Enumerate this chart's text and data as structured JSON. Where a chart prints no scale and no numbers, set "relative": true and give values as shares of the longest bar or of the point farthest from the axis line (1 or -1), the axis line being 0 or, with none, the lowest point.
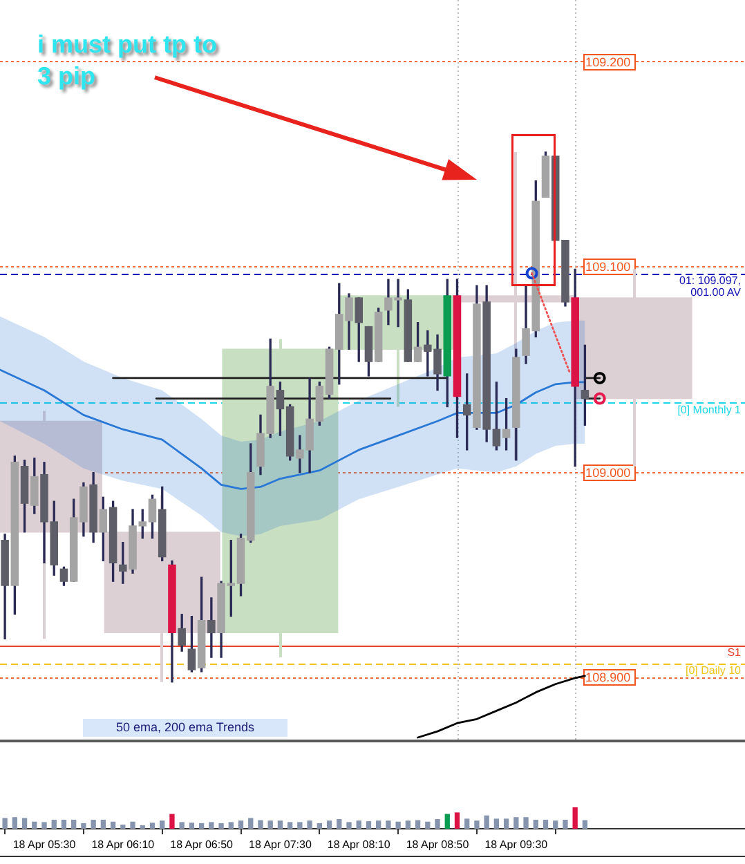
{
  "chart_data": [
    {
      "type": "candlestick",
      "xlim": [
        "--04-18T05:07:30",
        "--04-18T11:26:24"
      ],
      "ylim": [
        108.87,
        109.23
      ],
      "yticks": [
        {
          "value": 108.9,
          "label": "108.900"
        },
        {
          "value": 109.0,
          "label": "109.000"
        },
        {
          "value": 109.1,
          "label": "109.100"
        },
        {
          "value": 109.2,
          "label": "109.200"
        }
      ],
      "grid": "y",
      "tick_labels": "y",
      "series": [
        {
          "type": "bar",
          "x": [
            "--04-18T05:30",
            "--04-18T06:30",
            "--04-18T07:30",
            "--04-18T08:30",
            "--04-18T09:30",
            "--04-18T10:30"
          ],
          "base": [
            109.025,
            108.971,
            108.922,
            109.06,
            109.086,
            109.085
          ],
          "values": [
            -0.054,
            -0.049,
            0.138,
            0.026,
            -0.003,
            -0.049
          ],
          "errors": [
            [
              108.919,
              109.03
            ],
            [
              108.898,
              108.989
            ],
            [
              108.91,
              109.065
            ],
            [
              109.032,
              109.094
            ],
            [
              109.006,
              109.156
            ],
            [
              109.003,
              109.099
            ]
          ],
          "colors": [
            "#ddd0d4",
            "#ddd0d4",
            "#c9dfc1",
            "#c9dfc1",
            "#ddd0d4",
            "#ddd0d4"
          ]
        },
        {
          "type": "line",
          "color": "#2a78d6",
          "x": [
            "--04-18T05:07:30",
            "--04-18T05:30",
            "--04-18T05:50",
            "--04-18T06:10",
            "--04-18T06:30",
            "--04-18T06:50",
            "--04-18T07:00",
            "--04-18T07:10",
            "--04-18T07:20",
            "--04-18T07:30",
            "--04-18T07:50",
            "--04-18T08:10",
            "--04-18T08:30",
            "--04-18T08:50",
            "--04-18T09:00",
            "--04-18T09:10",
            "--04-18T09:20",
            "--04-18T09:30",
            "--04-18T09:40",
            "--04-18T09:50",
            "--04-18T10:00",
            "--04-18T10:05"
          ],
          "values": [
            109.05,
            109.04,
            109.028,
            109.021,
            109.016,
            109.002,
            108.994,
            108.992,
            108.993,
            108.997,
            109.001,
            109.011,
            109.018,
            109.025,
            109.029,
            109.029,
            109.029,
            109.033,
            109.039,
            109.043,
            109.044,
            109.044
          ],
          "upper": [
            109.076,
            109.066,
            109.054,
            109.046,
            109.04,
            109.026,
            109.018,
            109.015,
            109.016,
            109.02,
            109.025,
            109.035,
            109.043,
            109.051,
            109.056,
            109.057,
            109.058,
            109.063,
            109.069,
            109.073,
            109.074,
            109.074
          ],
          "lower": [
            109.025,
            109.014,
            109.002,
            108.996,
            108.992,
            108.979,
            108.971,
            108.969,
            108.97,
            108.974,
            108.977,
            108.987,
            108.993,
            108.999,
            109.002,
            109.001,
            109.0,
            109.003,
            109.009,
            109.013,
            109.014,
            109.014
          ]
        },
        {
          "type": "line",
          "color": "#000000",
          "x": [
            "--04-18T08:40",
            "--04-18T08:50",
            "--04-18T09:00",
            "--04-18T09:10",
            "--04-18T09:20",
            "--04-18T09:30",
            "--04-18T09:40",
            "--04-18T09:50",
            "--04-18T10:00",
            "--04-18T10:05"
          ],
          "values": [
            108.871,
            108.874,
            108.878,
            108.88,
            108.884,
            108.888,
            108.893,
            108.897,
            108.9,
            108.901
          ]
        },
        {
          "type": "line",
          "color": "#1e1e1e",
          "x": [
            "--04-18T06:05",
            "--04-18T08:55",
            "--04-18T09:30",
            "--04-18T10:05",
            "--04-18T10:12:30"
          ],
          "values": [
            109.046,
            109.046,
            null,
            109.046,
            109.046
          ]
        },
        {
          "type": "line",
          "color": "#1e1e1e",
          "x": [
            "--04-18T06:27",
            "--04-18T08:26",
            "--04-18T09:30",
            "--04-18T10:05",
            "--04-18T10:12:30"
          ],
          "values": [
            109.036,
            109.036,
            null,
            109.036,
            109.036
          ]
        },
        {
          "color": "#2a2a55",
          "x": [
            "--04-18T05:10",
            "--04-18T05:15",
            "--04-18T05:20",
            "--04-18T05:25",
            "--04-18T05:30",
            "--04-18T05:35",
            "--04-18T05:40",
            "--04-18T05:45",
            "--04-18T05:50",
            "--04-18T05:55",
            "--04-18T06:00",
            "--04-18T06:05",
            "--04-18T06:10",
            "--04-18T06:15",
            "--04-18T06:20",
            "--04-18T06:25",
            "--04-18T06:30",
            "--04-18T06:35",
            "--04-18T06:40",
            "--04-18T06:45",
            "--04-18T06:50",
            "--04-18T06:55",
            "--04-18T07:00",
            "--04-18T07:05",
            "--04-18T07:10",
            "--04-18T07:15",
            "--04-18T07:20",
            "--04-18T07:25",
            "--04-18T07:30",
            "--04-18T07:35",
            "--04-18T07:40",
            "--04-18T07:45",
            "--04-18T07:50",
            "--04-18T07:55",
            "--04-18T08:00",
            "--04-18T08:05",
            "--04-18T08:10",
            "--04-18T08:15",
            "--04-18T08:20",
            "--04-18T08:25",
            "--04-18T08:30",
            "--04-18T08:35",
            "--04-18T08:40",
            "--04-18T08:45",
            "--04-18T08:50",
            "--04-18T08:55",
            "--04-18T09:00",
            "--04-18T09:05",
            "--04-18T09:10",
            "--04-18T09:15",
            "--04-18T09:20",
            "--04-18T09:25",
            "--04-18T09:30",
            "--04-18T09:35",
            "--04-18T09:40",
            "--04-18T09:45",
            "--04-18T09:50",
            "--04-18T09:55",
            "--04-18T10:00",
            "--04-18T10:05"
          ],
          "ohlc": [
            [
              108.967,
              108.97,
              108.919,
              108.945
            ],
            [
              108.945,
              109.008,
              108.931,
              109.005
            ],
            [
              109.003,
              109.006,
              108.971,
              108.985
            ],
            [
              108.984,
              109.007,
              108.98,
              108.998
            ],
            [
              108.999,
              109.005,
              108.956,
              108.976
            ],
            [
              108.976,
              108.986,
              108.95,
              108.955
            ],
            [
              108.953,
              108.954,
              108.945,
              108.947
            ],
            [
              108.947,
              108.987,
              108.947,
              108.978
            ],
            [
              108.976,
              108.995,
              108.969,
              108.993
            ],
            [
              108.994,
              109.0,
              108.966,
              108.971
            ],
            [
              108.971,
              108.988,
              108.957,
              108.982
            ],
            [
              108.983,
              108.986,
              108.947,
              108.956
            ],
            [
              108.955,
              108.966,
              108.946,
              108.952
            ],
            [
              108.953,
              108.982,
              108.951,
              108.974
            ],
            [
              108.974,
              108.982,
              108.968,
              108.976
            ],
            [
              108.976,
              108.989,
              108.968,
              108.987
            ],
            [
              108.982,
              108.993,
              108.957,
              108.959
            ],
            [
              108.955,
              108.957,
              108.898,
              108.922
            ],
            [
              108.924,
              108.931,
              108.913,
              108.916
            ],
            [
              108.914,
              108.93,
              108.903,
              108.904
            ],
            [
              108.905,
              108.949,
              108.903,
              108.928
            ],
            [
              108.928,
              108.939,
              108.91,
              108.922
            ],
            [
              108.922,
              108.947,
              108.91,
              108.946
            ],
            [
              108.945,
              108.967,
              108.93,
              108.946
            ],
            [
              108.946,
              108.97,
              108.94,
              108.968
            ],
            [
              108.967,
              109.014,
              108.966,
              109.0
            ],
            [
              109.003,
              109.028,
              108.999,
              109.019
            ],
            [
              109.019,
              109.065,
              109.017,
              109.042
            ],
            [
              109.04,
              109.044,
              109.018,
              109.031
            ],
            [
              109.032,
              109.033,
              109.006,
              109.008
            ],
            [
              109.007,
              109.018,
              109.0,
              109.011
            ],
            [
              109.011,
              109.046,
              109.0,
              109.026
            ],
            [
              109.025,
              109.044,
              109.023,
              109.042
            ],
            [
              109.038,
              109.061,
              109.036,
              109.06
            ],
            [
              109.06,
              109.092,
              109.043,
              109.077
            ],
            [
              109.074,
              109.087,
              109.06,
              109.085
            ],
            [
              109.085,
              109.085,
              109.054,
              109.073
            ],
            [
              109.071,
              109.071,
              109.047,
              109.054
            ],
            [
              109.054,
              109.08,
              109.054,
              109.078
            ],
            [
              109.079,
              109.094,
              109.072,
              109.085
            ],
            [
              109.084,
              109.094,
              109.071,
              109.085
            ],
            [
              109.084,
              109.089,
              109.054,
              109.054
            ],
            [
              109.054,
              109.073,
              109.054,
              109.061
            ],
            [
              109.062,
              109.069,
              109.047,
              109.059
            ],
            [
              109.06,
              109.067,
              109.04,
              109.048
            ],
            [
              109.047,
              109.094,
              109.032,
              109.086
            ],
            [
              109.086,
              109.094,
              109.017,
              109.037
            ],
            [
              109.033,
              109.048,
              109.011,
              109.028
            ],
            [
              109.022,
              109.091,
              109.021,
              109.082
            ],
            [
              109.083,
              109.091,
              109.015,
              109.021
            ],
            [
              109.021,
              109.044,
              109.011,
              109.013
            ],
            [
              109.017,
              109.036,
              109.011,
              109.021
            ],
            [
              109.022,
              109.06,
              109.006,
              109.056
            ],
            [
              109.057,
              109.091,
              109.053,
              109.07
            ],
            [
              109.069,
              109.142,
              109.066,
              109.132
            ],
            [
              109.134,
              109.156,
              109.134,
              109.154
            ],
            [
              109.154,
              109.154,
              109.113,
              109.113
            ],
            [
              109.113,
              109.113,
              109.081,
              109.083
            ],
            [
              109.085,
              109.099,
              109.003,
              109.042
            ],
            [
              109.04,
              109.062,
              109.023,
              109.036
            ]
          ],
          "colors": [
            "#5e5e68",
            "#a4a4a4",
            "#5e5e68",
            "#a4a4a4",
            "#5e5e68",
            "#5e5e68",
            "#5e5e68",
            "#a4a4a4",
            "#a4a4a4",
            "#5e5e68",
            "#a4a4a4",
            "#5e5e68",
            "#5e5e68",
            "#a4a4a4",
            "#a4a4a4",
            "#a4a4a4",
            "#5e5e68",
            "#dc1446",
            "#5e5e68",
            "#5e5e68",
            "#a4a4a4",
            "#5e5e68",
            "#a4a4a4",
            "#a4a4a4",
            "#a4a4a4",
            "#a4a4a4",
            "#a4a4a4",
            "#a4a4a4",
            "#5e5e68",
            "#5e5e68",
            "#a4a4a4",
            "#a4a4a4",
            "#a4a4a4",
            "#a4a4a4",
            "#a4a4a4",
            "#a4a4a4",
            "#5e5e68",
            "#5e5e68",
            "#a4a4a4",
            "#a4a4a4",
            "#a4a4a4",
            "#5e5e68",
            "#a4a4a4",
            "#5e5e68",
            "#5e5e68",
            "#0a9c50",
            "#dc1446",
            "#5e5e68",
            "#a4a4a4",
            "#5e5e68",
            "#5e5e68",
            "#a4a4a4",
            "#a4a4a4",
            "#a4a4a4",
            "#a4a4a4",
            "#a4a4a4",
            "#5e5e68",
            "#5e5e68",
            "#dc1446",
            "#5e5e68"
          ]
        },
        {
          "type": "scatter",
          "marker": "circle",
          "color": "#1446d2",
          "x": [
            "--04-18T09:38"
          ],
          "values": [
            109.097
          ]
        },
        {
          "type": "scatter",
          "marker": "circle",
          "x": [
            "--04-18T10:12:30",
            "--04-18T10:12:30"
          ],
          "values": [
            109.046,
            109.036
          ],
          "colors": [
            "#000000",
            "#e8174b"
          ]
        },
        {
          "type": "line",
          "color": "#f05050",
          "line_style": "dotted",
          "x": [
            "--04-18T09:38",
            "--04-18T09:57:30"
          ],
          "values": [
            109.097,
            109.048
          ]
        }
      ],
      "ref_lines": [
        {
          "axis": "y",
          "value": 109.097,
          "label": "01: 109.097, 001.00 AV",
          "color": "#1414b4",
          "line_style": "dashed"
        },
        {
          "axis": "y",
          "value": 109.034,
          "label": "[0] Monthly 1",
          "color": "#18d8e8",
          "line_style": "dashed"
        },
        {
          "axis": "y",
          "value": 108.916,
          "label": "S1",
          "color": "#e8412c"
        },
        {
          "axis": "y",
          "value": 108.907,
          "label": "[0] Daily 10",
          "color": "#f0c419",
          "line_style": "dashed"
        },
        {
          "axis": "x",
          "value": "--04-18T09:00",
          "color": "#bdbdbd",
          "line_style": "dotted"
        },
        {
          "axis": "x",
          "value": "--04-18T10:00",
          "color": "#bdbdbd",
          "line_style": "dotted"
        }
      ],
      "annotations": [
        "i must put tp to 3 pip",
        "50 ema, 200 ema Trends"
      ]
    },
    {
      "type": "bar",
      "relative": true,
      "xlim": [
        "--04-18T05:07:30",
        "--04-18T11:26:24"
      ],
      "tick_labels": "x",
      "xticks": [
        {
          "value": "--04-18T05:30",
          "label": "18 Apr 05:30"
        },
        {
          "value": "--04-18T06:10",
          "label": "18 Apr 06:10"
        },
        {
          "value": "--04-18T06:50",
          "label": "18 Apr 06:50"
        },
        {
          "value": "--04-18T07:30",
          "label": "18 Apr 07:30"
        },
        {
          "value": "--04-18T08:10",
          "label": "18 Apr 08:10"
        },
        {
          "value": "--04-18T08:50",
          "label": "18 Apr 08:50"
        },
        {
          "value": "--04-18T09:30",
          "label": "18 Apr 09:30"
        }
      ],
      "x": [
        "--04-18T05:10",
        "--04-18T05:15",
        "--04-18T05:20",
        "--04-18T05:25",
        "--04-18T05:30",
        "--04-18T05:35",
        "--04-18T05:40",
        "--04-18T05:45",
        "--04-18T05:50",
        "--04-18T05:55",
        "--04-18T06:00",
        "--04-18T06:05",
        "--04-18T06:10",
        "--04-18T06:15",
        "--04-18T06:20",
        "--04-18T06:25",
        "--04-18T06:30",
        "--04-18T06:35",
        "--04-18T06:40",
        "--04-18T06:45",
        "--04-18T06:50",
        "--04-18T06:55",
        "--04-18T07:00",
        "--04-18T07:05",
        "--04-18T07:10",
        "--04-18T07:15",
        "--04-18T07:20",
        "--04-18T07:25",
        "--04-18T07:30",
        "--04-18T07:35",
        "--04-18T07:40",
        "--04-18T07:45",
        "--04-18T07:50",
        "--04-18T07:55",
        "--04-18T08:00",
        "--04-18T08:05",
        "--04-18T08:10",
        "--04-18T08:15",
        "--04-18T08:20",
        "--04-18T08:25",
        "--04-18T08:30",
        "--04-18T08:35",
        "--04-18T08:40",
        "--04-18T08:45",
        "--04-18T08:50",
        "--04-18T08:55",
        "--04-18T09:00",
        "--04-18T09:05",
        "--04-18T09:10",
        "--04-18T09:15",
        "--04-18T09:20",
        "--04-18T09:25",
        "--04-18T09:30",
        "--04-18T09:35",
        "--04-18T09:40",
        "--04-18T09:45",
        "--04-18T09:50",
        "--04-18T09:55",
        "--04-18T10:00",
        "--04-18T10:05"
      ],
      "values": [
        0.48,
        0.52,
        0.48,
        0.31,
        0.29,
        0.4,
        0.4,
        0.4,
        0.24,
        0.4,
        0.4,
        0.31,
        0.17,
        0.31,
        0.14,
        0.26,
        0.36,
        0.67,
        0.29,
        0.26,
        0.24,
        0.29,
        0.24,
        0.29,
        0.36,
        0.48,
        0.38,
        0.36,
        0.36,
        0.29,
        0.29,
        0.36,
        0.24,
        0.36,
        0.43,
        0.29,
        0.36,
        0.33,
        0.36,
        0.36,
        0.31,
        0.36,
        0.38,
        0.31,
        0.43,
        0.67,
        0.74,
        0.45,
        0.36,
        0.6,
        0.45,
        0.45,
        0.52,
        0.52,
        0.4,
        0.4,
        0.36,
        0.4,
        1,
        0.38
      ],
      "colors": [
        "#8695ad",
        "#8695ad",
        "#8695ad",
        "#8695ad",
        "#8695ad",
        "#8695ad",
        "#8695ad",
        "#8695ad",
        "#8695ad",
        "#8695ad",
        "#8695ad",
        "#8695ad",
        "#8695ad",
        "#8695ad",
        "#8695ad",
        "#8695ad",
        "#8695ad",
        "#dc1446",
        "#8695ad",
        "#8695ad",
        "#8695ad",
        "#8695ad",
        "#8695ad",
        "#8695ad",
        "#8695ad",
        "#8695ad",
        "#8695ad",
        "#8695ad",
        "#8695ad",
        "#8695ad",
        "#8695ad",
        "#8695ad",
        "#8695ad",
        "#8695ad",
        "#8695ad",
        "#8695ad",
        "#8695ad",
        "#8695ad",
        "#8695ad",
        "#8695ad",
        "#8695ad",
        "#8695ad",
        "#8695ad",
        "#8695ad",
        "#8695ad",
        "#0a9c50",
        "#dc1446",
        "#8695ad",
        "#8695ad",
        "#8695ad",
        "#8695ad",
        "#8695ad",
        "#8695ad",
        "#8695ad",
        "#8695ad",
        "#8695ad",
        "#8695ad",
        "#8695ad",
        "#dc1446",
        "#8695ad"
      ]
    }
  ]
}
